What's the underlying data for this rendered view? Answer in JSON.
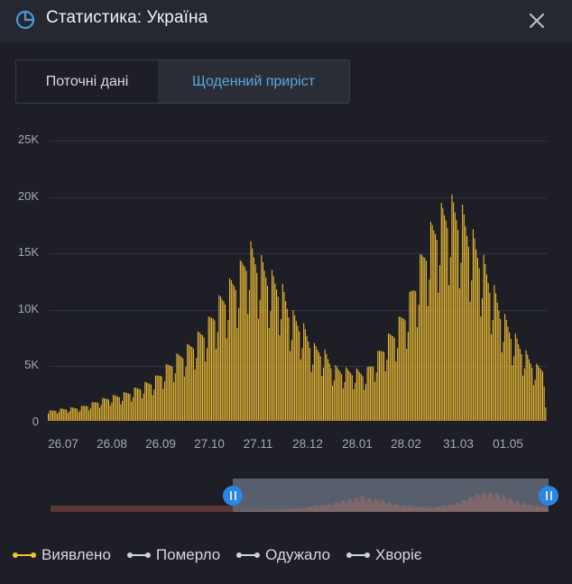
{
  "header": {
    "title": "Статистика: Україна",
    "icon": "pie-chart-icon",
    "close_icon": "close-icon",
    "icon_color": "#4a9ad8"
  },
  "tabs": [
    {
      "label": "Поточні дані",
      "active": false
    },
    {
      "label": "Щоденний приріст",
      "active": true
    }
  ],
  "legend": [
    {
      "label": "Виявлено",
      "color": "#f0c040",
      "active": true
    },
    {
      "label": "Померло",
      "color": "#cfd2d8",
      "active": false
    },
    {
      "label": "Одужало",
      "color": "#cfd2d8",
      "active": false
    },
    {
      "label": "Хворіє",
      "color": "#cfd2d8",
      "active": false
    }
  ],
  "navigator": {
    "left_handle_label": "||",
    "right_handle_label": "||",
    "range_start_pct": 36.6,
    "range_end_pct": 100
  },
  "colors": {
    "bar": "#f2c033",
    "background": "#1d1e26",
    "grid": "#33353f",
    "accent": "#2a86e0",
    "tab_active_text": "#5aa6e0"
  },
  "chart_data": {
    "type": "bar",
    "title": "Щоденний приріст",
    "series": [
      {
        "name": "Виявлено",
        "weekly_peaks_k": [
          0.9,
          1.1,
          1.2,
          1.3,
          1.6,
          2.0,
          2.3,
          2.5,
          2.9,
          3.4,
          3.9,
          4.9,
          5.9,
          6.7,
          7.8,
          9.0,
          11.0,
          12.5,
          14.0,
          16.2,
          15.0,
          13.6,
          12.6,
          10.0,
          9.0,
          7.0,
          6.6,
          5.0,
          4.8,
          4.7,
          4.6,
          6.0,
          7.6,
          9.0,
          11.0,
          14.4,
          17.5,
          19.3,
          20.3,
          19.6,
          17.4,
          15.2,
          12.5,
          9.8,
          8.0,
          6.5,
          5.1
        ],
        "weekday_factor": [
          0.72,
          1.0,
          0.97,
          0.93,
          0.9,
          0.86,
          0.6
        ],
        "last_day_value_k": 1.2
      }
    ],
    "x_tick_labels": [
      "26.07",
      "26.08",
      "26.09",
      "27.10",
      "27.11",
      "28.12",
      "28.01",
      "28.02",
      "31.03",
      "01.05"
    ],
    "y_tick_labels": [
      "0",
      "5K",
      "10K",
      "15K",
      "20K",
      "25K"
    ],
    "xlabel": "",
    "ylabel": "",
    "ylim": [
      0,
      25000
    ],
    "grid": true,
    "legend_position": "bottom"
  },
  "axes": {
    "y": [
      "0",
      "5K",
      "10K",
      "15K",
      "20K",
      "25K"
    ],
    "x": [
      "26.07",
      "26.08",
      "26.09",
      "27.10",
      "27.11",
      "28.12",
      "28.01",
      "28.02",
      "31.03",
      "01.05"
    ]
  }
}
